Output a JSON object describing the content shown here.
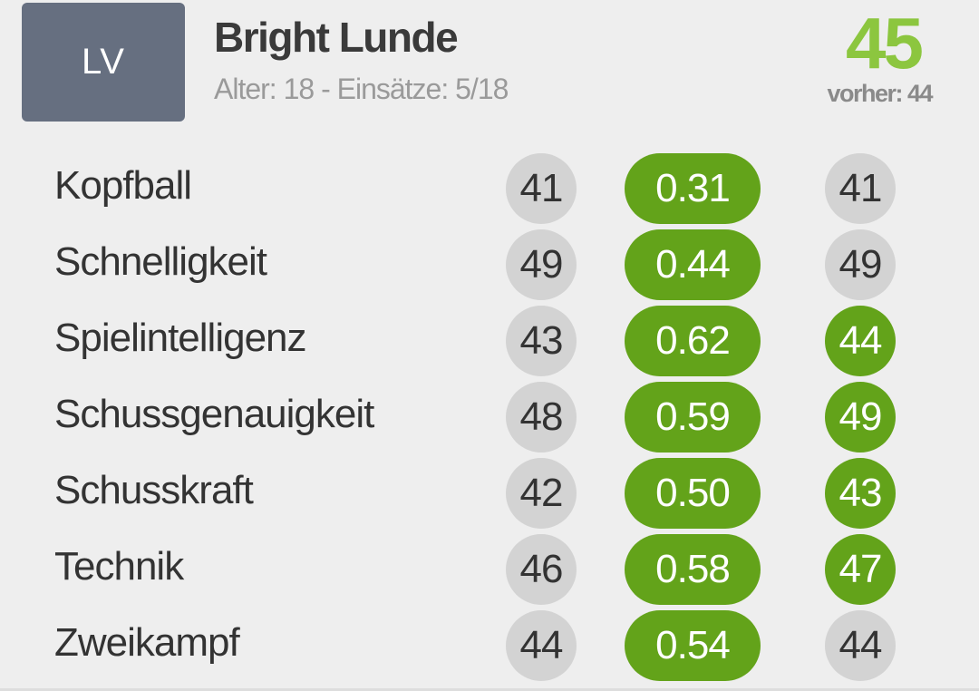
{
  "player": {
    "position": "LV",
    "name": "Bright Lunde",
    "meta": "Alter: 18 - Einsätze: 5/18",
    "overall": "45",
    "previous": "vorher: 44"
  },
  "colors": {
    "accent_green": "#8cc63f",
    "improve_green": "#63a31a",
    "neutral_grey": "#d3d3d3",
    "badge_slate": "#666f80"
  },
  "skills": [
    {
      "label": "Kopfball",
      "old": "41",
      "progress": "0.31",
      "new": "41",
      "improved": false
    },
    {
      "label": "Schnelligkeit",
      "old": "49",
      "progress": "0.44",
      "new": "49",
      "improved": false
    },
    {
      "label": "Spielintelligenz",
      "old": "43",
      "progress": "0.62",
      "new": "44",
      "improved": true
    },
    {
      "label": "Schussgenauigkeit",
      "old": "48",
      "progress": "0.59",
      "new": "49",
      "improved": true
    },
    {
      "label": "Schusskraft",
      "old": "42",
      "progress": "0.50",
      "new": "43",
      "improved": true
    },
    {
      "label": "Technik",
      "old": "46",
      "progress": "0.58",
      "new": "47",
      "improved": true
    },
    {
      "label": "Zweikampf",
      "old": "44",
      "progress": "0.54",
      "new": "44",
      "improved": false
    }
  ]
}
